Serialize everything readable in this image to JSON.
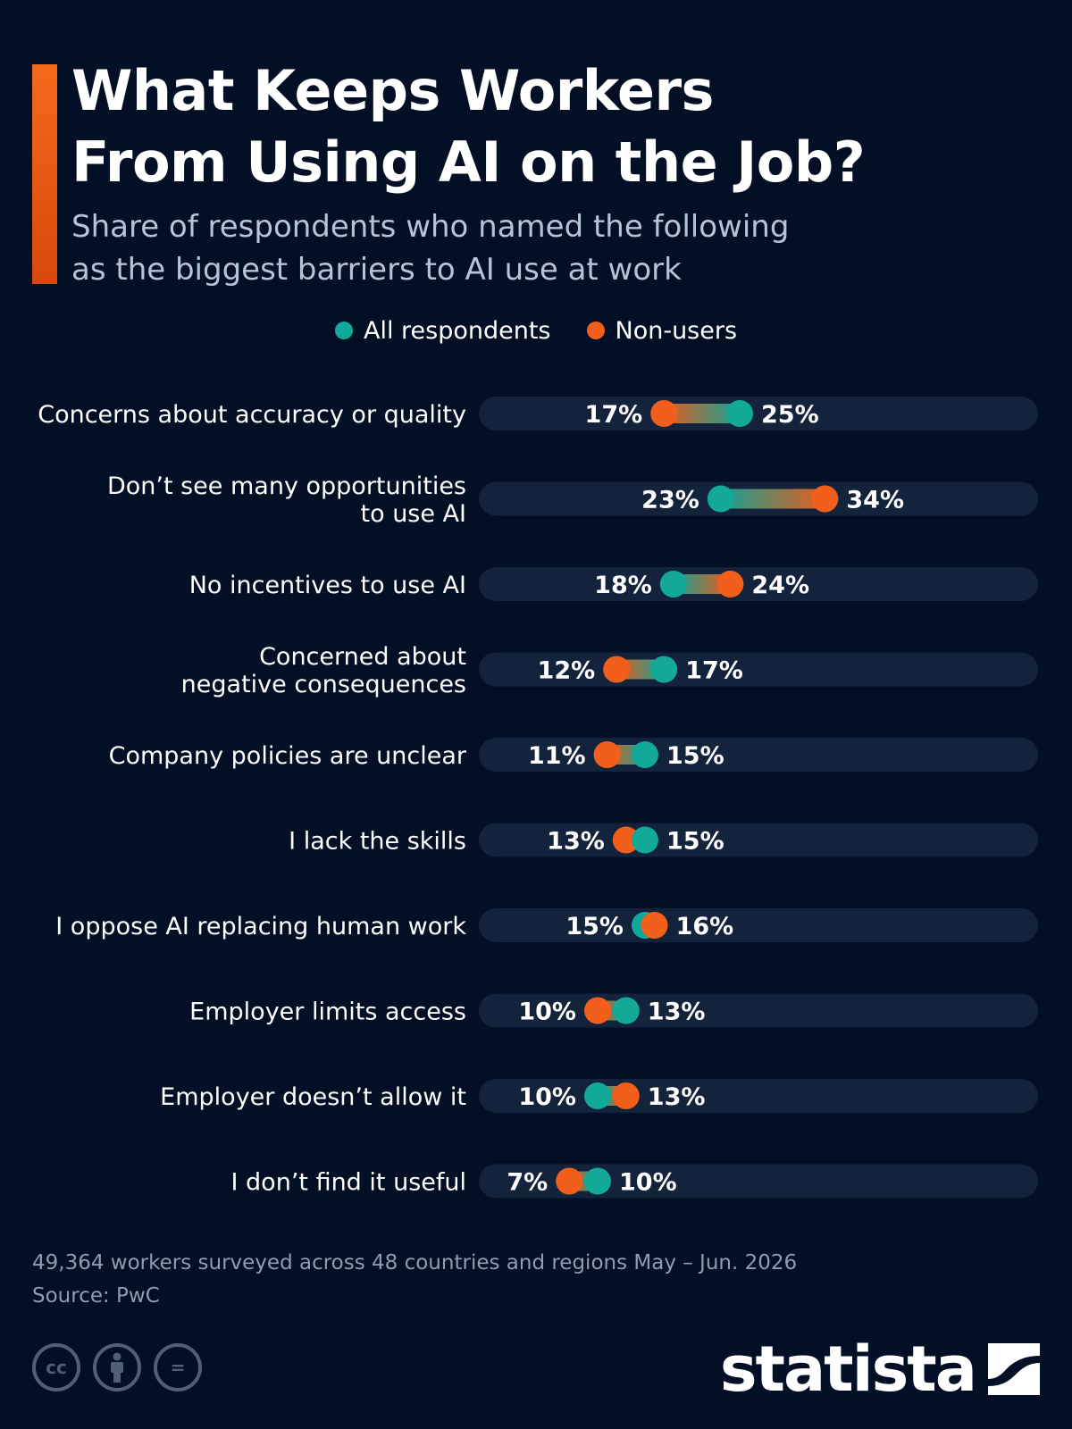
{
  "header": {
    "title_lines": [
      "What Keeps Workers",
      "From Using AI on the Job?"
    ],
    "subtitle_lines": [
      "Share of respondents who named the following",
      "as the biggest barriers to AI use at work"
    ]
  },
  "colors": {
    "all_respondents": "#13a999",
    "non_users": "#f25f1c",
    "accent": "#f26a1f",
    "background": "#020f24",
    "track": "#13233c"
  },
  "chart_data": {
    "type": "dumbbell",
    "title": "What Keeps Workers From Using AI on the Job?",
    "subtitle": "Share of respondents who named the following as the biggest barriers to AI use at work",
    "unit": "%",
    "legend_position": "top-center",
    "series": [
      {
        "name": "All respondents",
        "values": [
          25,
          23,
          18,
          17,
          15,
          15,
          15,
          13,
          10,
          10
        ]
      },
      {
        "name": "Non-users",
        "values": [
          17,
          34,
          24,
          12,
          11,
          13,
          16,
          10,
          13,
          7
        ]
      }
    ],
    "categories": [
      [
        "Concerns about accuracy or quality"
      ],
      [
        "Don’t see many opportunities",
        "to use AI"
      ],
      [
        "No incentives to use AI"
      ],
      [
        "Concerned about",
        "negative consequences"
      ],
      [
        "Company policies are unclear"
      ],
      [
        "I lack the skills"
      ],
      [
        "I oppose AI replacing human work"
      ],
      [
        "Employer limits access"
      ],
      [
        "Employer doesn’t allow it"
      ],
      [
        "I don’t find it useful"
      ]
    ],
    "value_labels_all": [
      "25%",
      "23%",
      "18%",
      "17%",
      "15%",
      "15%",
      "15%",
      "13%",
      "10%",
      "10%"
    ],
    "value_labels_non": [
      "17%",
      "34%",
      "24%",
      "12%",
      "11%",
      "13%",
      "16%",
      "10%",
      "13%",
      "7%"
    ]
  },
  "footer": {
    "note": "49,364 workers surveyed across 48 countries and regions May – Jun. 2026",
    "source": "Source: PwC",
    "license_icons": [
      "cc-icon",
      "person-icon",
      "equals-icon"
    ],
    "cc_text": "cc",
    "equals_text": "=",
    "brand": "statista"
  }
}
